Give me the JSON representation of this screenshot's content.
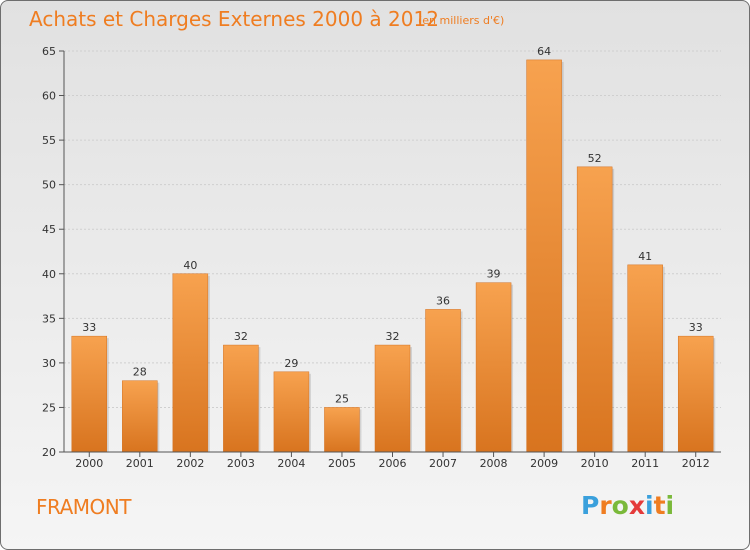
{
  "chart_data": {
    "type": "bar",
    "title": "Achats et Charges Externes 2000 à 2012",
    "unit": "(en milliers d'€)",
    "xlabel": "",
    "ylabel": "",
    "categories": [
      "2000",
      "2001",
      "2002",
      "2003",
      "2004",
      "2005",
      "2006",
      "2007",
      "2008",
      "2009",
      "2010",
      "2011",
      "2012"
    ],
    "values": [
      33,
      28,
      40,
      32,
      29,
      25,
      32,
      36,
      39,
      64,
      52,
      41,
      33
    ],
    "ylim": [
      20,
      65
    ],
    "yticks": [
      20,
      25,
      30,
      35,
      40,
      45,
      50,
      55,
      60,
      65
    ],
    "grid": true,
    "bar_color": "#ef8a2e"
  },
  "commune": "FRAMONT",
  "logo": {
    "letters": [
      "P",
      "r",
      "o",
      "x",
      "i",
      "t",
      "i"
    ],
    "colors": [
      "#3aa0dc",
      "#ef7d21",
      "#7ab93a",
      "#e43a3a",
      "#3aa0dc",
      "#ef7d21",
      "#7ab93a"
    ]
  }
}
